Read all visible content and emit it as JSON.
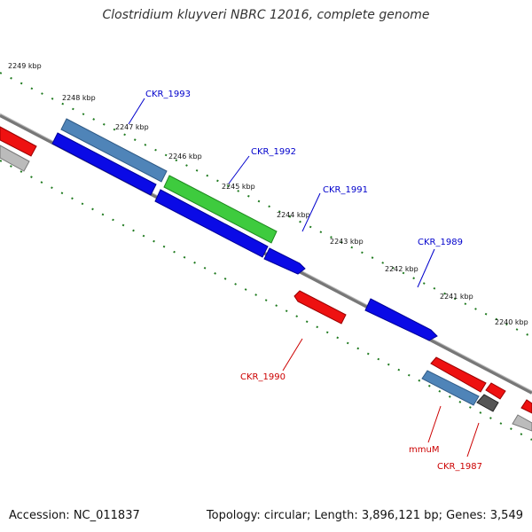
{
  "title": "Clostridium kluyveri NBRC 12016, complete genome",
  "footer": {
    "accession": "Accession: NC_011837",
    "stats": "Topology: circular; Length: 3,896,121 bp; Genes: 3,549"
  },
  "ticks": [
    "2249 kbp",
    "2248 kbp",
    "2247 kbp",
    "2246 kbp",
    "2245 kbp",
    "2244 kbp",
    "2243 kbp",
    "2242 kbp",
    "2241 kbp",
    "2240 kbp"
  ],
  "genes": {
    "ckr_1993": "CKR_1993",
    "ckr_1992": "CKR_1992",
    "ckr_1991": "CKR_1991",
    "ckr_1989": "CKR_1989",
    "ckr_1990": "CKR_1990",
    "mmum": "mmuM",
    "ckr_1987": "CKR_1987"
  },
  "colors": {
    "forward_label": "#0000cc",
    "reverse_label": "#cc0000",
    "blue_cds": "#0a0ae6",
    "steel_cds": "#4f84b8",
    "green_cds": "#3ecb3e",
    "red_cds": "#ee1111",
    "gray_cds": "#bbbbbb",
    "dark_cds": "#555555",
    "tick_color": "#1f7a1f"
  }
}
